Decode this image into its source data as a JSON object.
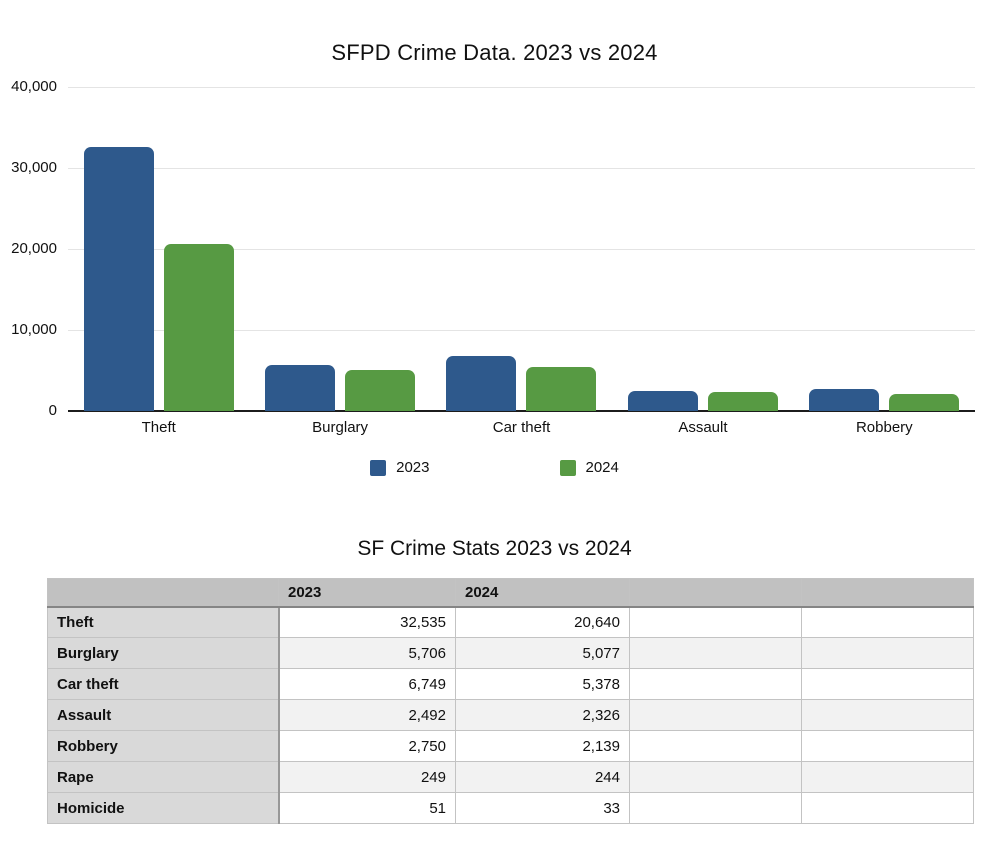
{
  "chart_data": [
    {
      "type": "bar",
      "title": "SFPD Crime Data. 2023 vs 2024",
      "categories": [
        "Theft",
        "Burglary",
        "Car theft",
        "Assault",
        "Robbery"
      ],
      "series": [
        {
          "name": "2023",
          "color": "#2e598c",
          "values": [
            32535,
            5706,
            6749,
            2492,
            2750
          ]
        },
        {
          "name": "2024",
          "color": "#579a43",
          "values": [
            20640,
            5077,
            5378,
            2326,
            2139
          ]
        }
      ],
      "xlabel": "",
      "ylabel": "",
      "ylim": [
        0,
        40000
      ],
      "y_tick_labels": [
        "0",
        "10,000",
        "20,000",
        "30,000",
        "40,000"
      ],
      "grid": true,
      "legend_position": "bottom"
    },
    {
      "type": "table",
      "title": "SF Crime Stats 2023 vs 2024",
      "columns": [
        "",
        "2023",
        "2024",
        "",
        ""
      ],
      "rows": [
        [
          "Theft",
          "32,535",
          "20,640",
          "",
          ""
        ],
        [
          "Burglary",
          "5,706",
          "5,077",
          "",
          ""
        ],
        [
          "Car theft",
          "6,749",
          "5,378",
          "",
          ""
        ],
        [
          "Assault",
          "2,492",
          "2,326",
          "",
          ""
        ],
        [
          "Robbery",
          "2,750",
          "2,139",
          "",
          ""
        ],
        [
          "Rape",
          "249",
          "244",
          "",
          ""
        ],
        [
          "Homicide",
          "51",
          "33",
          "",
          ""
        ]
      ]
    }
  ],
  "colors": {
    "series_2023": "#2e598c",
    "series_2024": "#579a43",
    "table_header_bg": "#c1c1c1",
    "table_label_bg": "#d9d9d9",
    "table_alt_row_bg": "#f2f2f2",
    "gridline": "#e4e4e4",
    "axis_line": "#1c1c1c"
  }
}
